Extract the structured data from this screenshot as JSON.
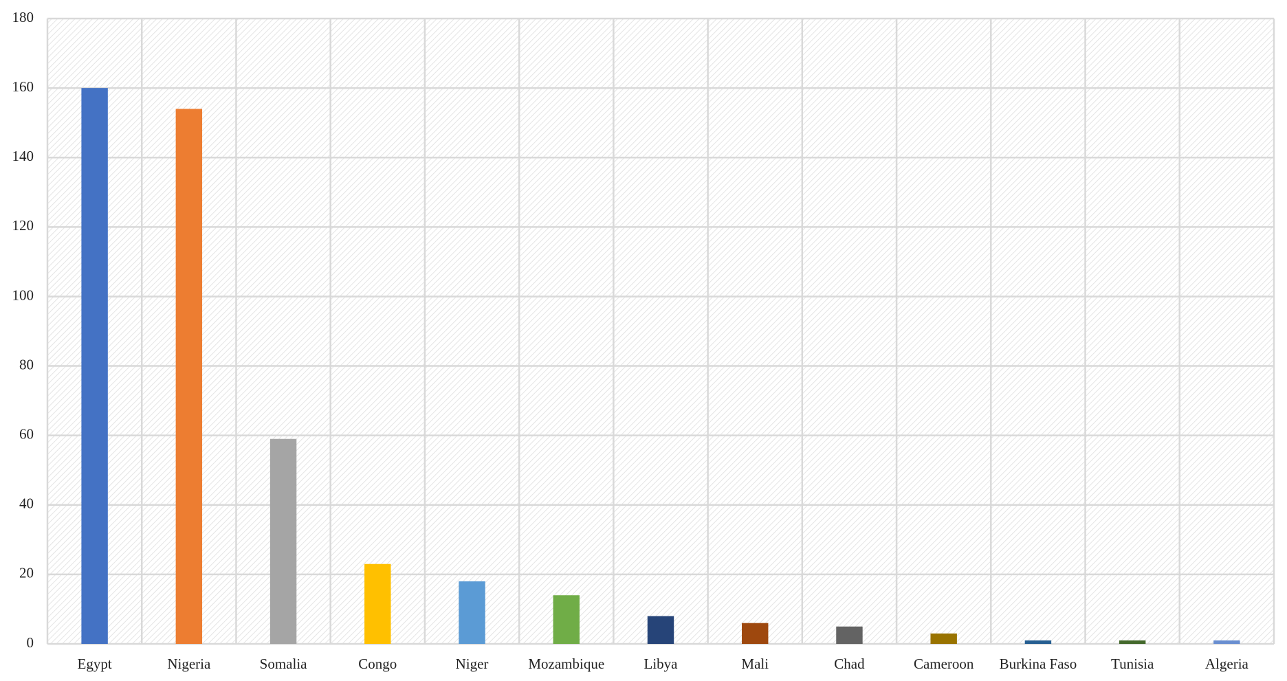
{
  "chart_data": {
    "type": "bar",
    "categories": [
      "Egypt",
      "Nigeria",
      "Somalia",
      "Congo",
      "Niger",
      "Mozambique",
      "Libya",
      "Mali",
      "Chad",
      "Cameroon",
      "Burkina Faso",
      "Tunisia",
      "Algeria"
    ],
    "values": [
      160,
      154,
      59,
      23,
      18,
      14,
      8,
      6,
      5,
      3,
      1,
      1,
      1
    ],
    "colors": [
      "#4472c4",
      "#ed7d31",
      "#a5a5a5",
      "#ffc000",
      "#5b9bd5",
      "#70ad47",
      "#264478",
      "#9e480e",
      "#636363",
      "#997300",
      "#255e91",
      "#43682b",
      "#698ed0"
    ],
    "ylim": [
      0,
      180
    ],
    "yticks": [
      0,
      20,
      40,
      60,
      80,
      100,
      120,
      140,
      160,
      180
    ],
    "grid": true
  }
}
